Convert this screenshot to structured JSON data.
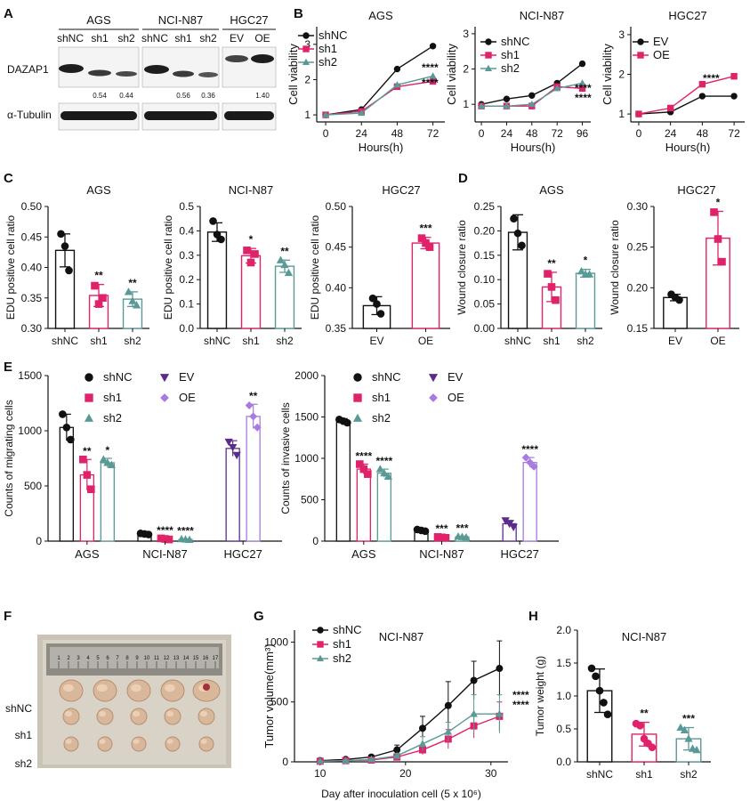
{
  "panels": {
    "A": "A",
    "B": "B",
    "C": "C",
    "D": "D",
    "E": "E",
    "F": "F",
    "G": "G",
    "H": "H"
  },
  "colors": {
    "black": "#111111",
    "magenta": "#e0226a",
    "teal": "#5a9a96",
    "purple": "#5a2d8a",
    "lavender": "#a77be0"
  },
  "western": {
    "groups": [
      {
        "name": "AGS",
        "lanes": [
          "shNC",
          "sh1",
          "sh2"
        ],
        "ratios": [
          "",
          "0.54",
          "0.44"
        ]
      },
      {
        "name": "NCI-N87",
        "lanes": [
          "shNC",
          "sh1",
          "sh2"
        ],
        "ratios": [
          "",
          "0.56",
          "0.36"
        ]
      },
      {
        "name": "HGC27",
        "lanes": [
          "EV",
          "OE"
        ],
        "ratios": [
          "",
          "1.40"
        ]
      }
    ],
    "row_labels": [
      "DAZAP1",
      "α-Tubulin"
    ]
  },
  "photo": {
    "ruler_numbers": [
      "1",
      "2",
      "3",
      "4",
      "5",
      "6",
      "7",
      "8",
      "9",
      "10",
      "11",
      "12",
      "13",
      "14",
      "15",
      "16",
      "17"
    ],
    "row_labels": [
      "shNC",
      "sh1",
      "sh2"
    ]
  },
  "chart_data": [
    {
      "id": "B1",
      "type": "line",
      "title": "AGS",
      "xlabel": "Hours(h)",
      "ylabel": "Cell viability",
      "xticks": [
        "0",
        "24",
        "48",
        "72"
      ],
      "yticks": [
        "1",
        "2",
        "3"
      ],
      "xlim": [
        -6,
        80
      ],
      "ylim": [
        0.8,
        3.5
      ],
      "series": [
        {
          "name": "shNC",
          "color": "#111111",
          "marker": "circle",
          "x": [
            0,
            24,
            48,
            72
          ],
          "y": [
            1.0,
            1.15,
            2.3,
            2.95
          ]
        },
        {
          "name": "sh1",
          "color": "#e0226a",
          "marker": "square",
          "x": [
            0,
            24,
            48,
            72
          ],
          "y": [
            1.0,
            1.1,
            1.8,
            1.95
          ]
        },
        {
          "name": "sh2",
          "color": "#5a9a96",
          "marker": "triangle",
          "x": [
            0,
            24,
            48,
            72
          ],
          "y": [
            1.0,
            1.05,
            1.85,
            2.1
          ]
        }
      ],
      "annotations": [
        "****",
        "****"
      ]
    },
    {
      "id": "B2",
      "type": "line",
      "title": "NCI-N87",
      "xlabel": "Hours(h)",
      "ylabel": "Cell viability",
      "xticks": [
        "0",
        "24",
        "48",
        "72",
        "96"
      ],
      "yticks": [
        "1",
        "2",
        "3"
      ],
      "xlim": [
        -6,
        104
      ],
      "ylim": [
        0.5,
        3.2
      ],
      "series": [
        {
          "name": "shNC",
          "color": "#111111",
          "marker": "circle",
          "x": [
            0,
            24,
            48,
            72,
            96
          ],
          "y": [
            1.0,
            1.15,
            1.25,
            1.6,
            2.15
          ]
        },
        {
          "name": "sh1",
          "color": "#e0226a",
          "marker": "square",
          "x": [
            0,
            24,
            48,
            72,
            96
          ],
          "y": [
            0.95,
            0.95,
            0.95,
            1.5,
            1.45
          ]
        },
        {
          "name": "sh2",
          "color": "#5a9a96",
          "marker": "triangle",
          "x": [
            0,
            24,
            48,
            72,
            96
          ],
          "y": [
            0.95,
            0.95,
            1.0,
            1.45,
            1.6
          ]
        }
      ],
      "annotations": [
        "****",
        "****"
      ]
    },
    {
      "id": "B3",
      "type": "line",
      "title": "HGC27",
      "xlabel": "Hours(h)",
      "ylabel": "Cell viability",
      "xticks": [
        "0",
        "24",
        "48",
        "72"
      ],
      "yticks": [
        "1",
        "2",
        "3"
      ],
      "xlim": [
        -6,
        80
      ],
      "ylim": [
        0.8,
        3.2
      ],
      "series": [
        {
          "name": "EV",
          "color": "#111111",
          "marker": "circle",
          "x": [
            0,
            24,
            48,
            72
          ],
          "y": [
            1.0,
            1.05,
            1.45,
            1.45
          ]
        },
        {
          "name": "OE",
          "color": "#e0226a",
          "marker": "square",
          "x": [
            0,
            24,
            48,
            72
          ],
          "y": [
            1.0,
            1.15,
            1.75,
            1.95
          ]
        }
      ],
      "annotations": [
        "****"
      ]
    },
    {
      "id": "C1",
      "type": "bar",
      "title": "AGS",
      "ylabel": "EDU positive cell ratio",
      "categories": [
        "shNC",
        "sh1",
        "sh2"
      ],
      "values": [
        0.428,
        0.354,
        0.348
      ],
      "err": [
        0.027,
        0.018,
        0.012
      ],
      "ylim": [
        0.3,
        0.5
      ],
      "yticks": [
        "0.30",
        "0.35",
        "0.40",
        "0.45",
        "0.50"
      ],
      "colors": [
        "#111111",
        "#e0226a",
        "#5a9a96"
      ],
      "points": [
        [
          0.455,
          0.435,
          0.395
        ],
        [
          0.37,
          0.34,
          0.35
        ],
        [
          0.36,
          0.345,
          0.338
        ]
      ],
      "annotations": [
        "",
        "**",
        "**"
      ]
    },
    {
      "id": "C2",
      "type": "bar",
      "title": "NCI-N87",
      "ylabel": "EDU positive cell ratio",
      "categories": [
        "shNC",
        "sh1",
        "sh2"
      ],
      "values": [
        0.395,
        0.298,
        0.255
      ],
      "err": [
        0.038,
        0.03,
        0.025
      ],
      "ylim": [
        0.0,
        0.5
      ],
      "yticks": [
        "0.0",
        "0.1",
        "0.2",
        "0.3",
        "0.4",
        "0.5"
      ],
      "colors": [
        "#111111",
        "#e0226a",
        "#5a9a96"
      ],
      "points": [
        [
          0.44,
          0.385,
          0.365
        ],
        [
          0.32,
          0.27,
          0.305
        ],
        [
          0.28,
          0.26,
          0.228
        ]
      ],
      "annotations": [
        "",
        "*",
        "**"
      ]
    },
    {
      "id": "C3",
      "type": "bar",
      "title": "HGC27",
      "ylabel": "EDU positive cell ratio",
      "categories": [
        "EV",
        "OE"
      ],
      "values": [
        0.378,
        0.455
      ],
      "err": [
        0.011,
        0.007
      ],
      "ylim": [
        0.35,
        0.5
      ],
      "yticks": [
        "0.35",
        "0.40",
        "0.45",
        "0.50"
      ],
      "colors": [
        "#111111",
        "#e0226a"
      ],
      "points": [
        [
          0.387,
          0.38,
          0.368
        ],
        [
          0.461,
          0.455,
          0.45
        ]
      ],
      "annotations": [
        "",
        "***"
      ]
    },
    {
      "id": "D1",
      "type": "bar",
      "title": "AGS",
      "ylabel": "Wound closure ratio",
      "categories": [
        "shNC",
        "sh1",
        "sh2"
      ],
      "values": [
        0.197,
        0.085,
        0.113
      ],
      "err": [
        0.036,
        0.03,
        0.008
      ],
      "ylim": [
        0.0,
        0.25
      ],
      "yticks": [
        "0.00",
        "0.05",
        "0.10",
        "0.15",
        "0.20",
        "0.25"
      ],
      "colors": [
        "#111111",
        "#e0226a",
        "#5a9a96"
      ],
      "points": [
        [
          0.225,
          0.195,
          0.17
        ],
        [
          0.112,
          0.085,
          0.058
        ],
        [
          0.117,
          0.111,
          0.111
        ]
      ],
      "annotations": [
        "",
        "**",
        "*"
      ]
    },
    {
      "id": "D2",
      "type": "bar",
      "title": "HGC27",
      "ylabel": "Wound closure ratio",
      "categories": [
        "EV",
        "OE"
      ],
      "values": [
        0.188,
        0.261
      ],
      "err": [
        0.004,
        0.033
      ],
      "ylim": [
        0.15,
        0.3
      ],
      "yticks": [
        "0.15",
        "0.20",
        "0.25",
        "0.30"
      ],
      "colors": [
        "#111111",
        "#e0226a"
      ],
      "points": [
        [
          0.192,
          0.188,
          0.185
        ],
        [
          0.293,
          0.26,
          0.232
        ]
      ],
      "annotations": [
        "",
        "*"
      ]
    },
    {
      "id": "E1",
      "type": "bar",
      "ylabel": "Counts of migrating cells",
      "groups": [
        "AGS",
        "NCI-N87",
        "HGC27"
      ],
      "ylim": [
        0,
        1500
      ],
      "yticks": [
        "0",
        "500",
        "1000",
        "1500"
      ],
      "bars": [
        {
          "group": 0,
          "name": "shNC",
          "color": "#111111",
          "marker": "circle",
          "value": 1030,
          "err": 120,
          "points": [
            1150,
            1030,
            920
          ],
          "annotation": ""
        },
        {
          "group": 0,
          "name": "sh1",
          "color": "#e0226a",
          "marker": "square",
          "value": 600,
          "err": 140,
          "points": [
            740,
            600,
            470
          ],
          "annotation": "**"
        },
        {
          "group": 0,
          "name": "sh2",
          "color": "#5a9a96",
          "marker": "triangle",
          "value": 710,
          "err": 40,
          "points": [
            740,
            710,
            690
          ],
          "annotation": "*"
        },
        {
          "group": 1,
          "name": "shNC",
          "color": "#111111",
          "marker": "circle",
          "value": 65,
          "err": 8,
          "points": [
            70,
            65,
            60
          ],
          "annotation": ""
        },
        {
          "group": 1,
          "name": "sh1",
          "color": "#e0226a",
          "marker": "square",
          "value": 20,
          "err": 5,
          "points": [
            25,
            20,
            15
          ],
          "annotation": "****"
        },
        {
          "group": 1,
          "name": "sh2",
          "color": "#5a9a96",
          "marker": "triangle",
          "value": 15,
          "err": 4,
          "points": [
            18,
            15,
            12
          ],
          "annotation": "****"
        },
        {
          "group": 2,
          "name": "EV",
          "color": "#5a2d8a",
          "marker": "tridown",
          "value": 840,
          "err": 70,
          "points": [
            900,
            850,
            780
          ],
          "annotation": ""
        },
        {
          "group": 2,
          "name": "OE",
          "color": "#a77be0",
          "marker": "diamond",
          "value": 1130,
          "err": 110,
          "points": [
            1230,
            1130,
            1030
          ],
          "annotation": "**"
        }
      ],
      "legend": [
        "shNC",
        "sh1",
        "sh2",
        "EV",
        "OE"
      ]
    },
    {
      "id": "E2",
      "type": "bar",
      "ylabel": "Counts of invasive cells",
      "groups": [
        "AGS",
        "NCI-N87",
        "HGC27"
      ],
      "ylim": [
        0,
        2000
      ],
      "yticks": [
        "0",
        "500",
        "1000",
        "1500",
        "2000"
      ],
      "bars": [
        {
          "group": 0,
          "name": "shNC",
          "color": "#111111",
          "marker": "circle",
          "value": 1450,
          "err": 30,
          "points": [
            1470,
            1450,
            1430
          ],
          "annotation": ""
        },
        {
          "group": 0,
          "name": "sh1",
          "color": "#e0226a",
          "marker": "square",
          "value": 870,
          "err": 60,
          "points": [
            930,
            870,
            810
          ],
          "annotation": "****"
        },
        {
          "group": 0,
          "name": "sh2",
          "color": "#5a9a96",
          "marker": "triangle",
          "value": 820,
          "err": 50,
          "points": [
            870,
            820,
            780
          ],
          "annotation": "****"
        },
        {
          "group": 1,
          "name": "shNC",
          "color": "#111111",
          "marker": "circle",
          "value": 130,
          "err": 15,
          "points": [
            140,
            130,
            120
          ],
          "annotation": ""
        },
        {
          "group": 1,
          "name": "sh1",
          "color": "#e0226a",
          "marker": "square",
          "value": 45,
          "err": 8,
          "points": [
            50,
            45,
            40
          ],
          "annotation": "***"
        },
        {
          "group": 1,
          "name": "sh2",
          "color": "#5a9a96",
          "marker": "triangle",
          "value": 50,
          "err": 8,
          "points": [
            55,
            50,
            45
          ],
          "annotation": "***"
        },
        {
          "group": 2,
          "name": "EV",
          "color": "#5a2d8a",
          "marker": "tridown",
          "value": 210,
          "err": 40,
          "points": [
            250,
            210,
            170
          ],
          "annotation": ""
        },
        {
          "group": 2,
          "name": "OE",
          "color": "#a77be0",
          "marker": "diamond",
          "value": 950,
          "err": 60,
          "points": [
            1010,
            950,
            900
          ],
          "annotation": "****"
        }
      ],
      "legend": [
        "shNC",
        "sh1",
        "sh2",
        "EV",
        "OE"
      ]
    },
    {
      "id": "G",
      "type": "line",
      "title": "NCI-N87",
      "xlabel": "Day after inoculation cell (5 x 10⁶)",
      "ylabel": "Tumor volume(mm³)",
      "xticks": [
        "10",
        "20",
        "30"
      ],
      "yticks": [
        "0",
        "500",
        "1000"
      ],
      "xlim": [
        7,
        32
      ],
      "ylim": [
        0,
        1100
      ],
      "series": [
        {
          "name": "shNC",
          "color": "#111111",
          "marker": "circle",
          "x": [
            10,
            13,
            16,
            19,
            22,
            25,
            28,
            31
          ],
          "y": [
            10,
            20,
            40,
            100,
            280,
            470,
            680,
            780
          ],
          "err": [
            5,
            10,
            15,
            40,
            100,
            200,
            160,
            230
          ]
        },
        {
          "name": "sh1",
          "color": "#e0226a",
          "marker": "square",
          "x": [
            10,
            13,
            16,
            19,
            22,
            25,
            28,
            31
          ],
          "y": [
            5,
            10,
            15,
            40,
            100,
            190,
            300,
            380
          ],
          "err": [
            3,
            5,
            8,
            20,
            40,
            80,
            100,
            120
          ]
        },
        {
          "name": "sh2",
          "color": "#5a9a96",
          "marker": "triangle",
          "x": [
            10,
            13,
            16,
            19,
            22,
            25,
            28,
            31
          ],
          "y": [
            5,
            10,
            20,
            50,
            150,
            250,
            400,
            400
          ],
          "err": [
            3,
            5,
            10,
            20,
            60,
            80,
            160,
            160
          ]
        }
      ],
      "annotations": [
        "****",
        "****"
      ]
    },
    {
      "id": "H",
      "type": "bar",
      "title": "NCI-N87",
      "ylabel": "Tumor weight (g)",
      "categories": [
        "shNC",
        "sh1",
        "sh2"
      ],
      "values": [
        1.08,
        0.42,
        0.35
      ],
      "err": [
        0.33,
        0.18,
        0.17
      ],
      "ylim": [
        0,
        2.0
      ],
      "yticks": [
        "0.0",
        "0.5",
        "1.0",
        "1.5",
        "2.0"
      ],
      "colors": [
        "#111111",
        "#e0226a",
        "#5a9a96"
      ],
      "points": [
        [
          1.42,
          1.3,
          1.08,
          0.9,
          0.72
        ],
        [
          0.58,
          0.55,
          0.35,
          0.28,
          0.22
        ],
        [
          0.52,
          0.48,
          0.35,
          0.2,
          0.18
        ]
      ],
      "annotations": [
        "",
        "**",
        "***"
      ]
    }
  ]
}
